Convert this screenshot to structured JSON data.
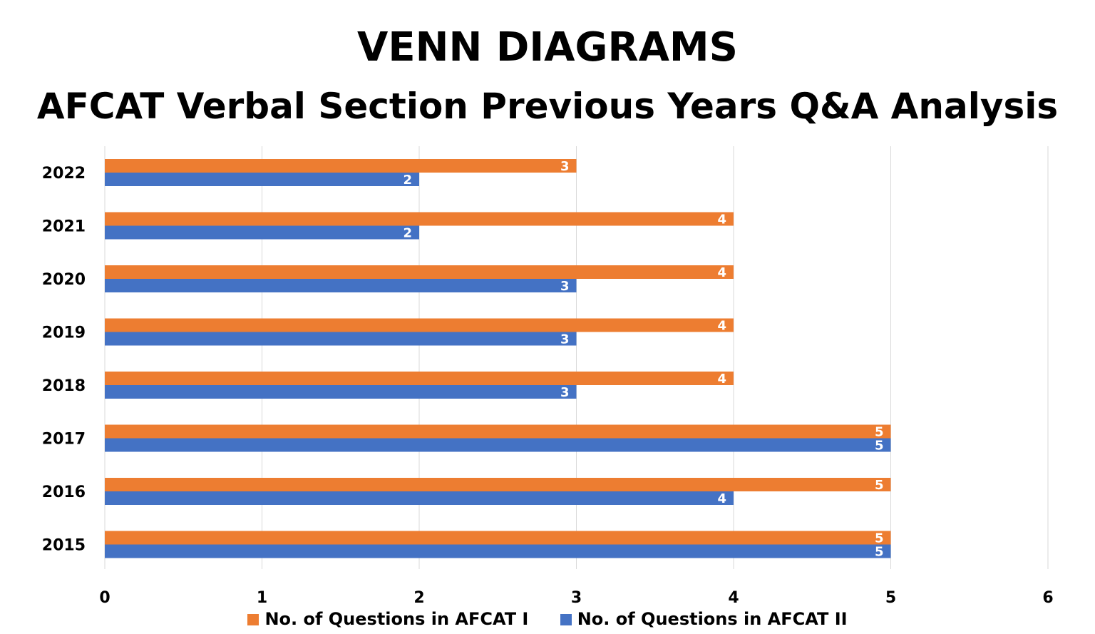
{
  "chart_data": {
    "type": "bar",
    "orientation": "horizontal",
    "title": "VENN DIAGRAMS",
    "subtitle": "AFCAT Verbal Section Previous Years Q&A Analysis",
    "categories": [
      "2022",
      "2021",
      "2020",
      "2019",
      "2018",
      "2017",
      "2016",
      "2015"
    ],
    "series": [
      {
        "name": "No. of Questions in AFCAT I",
        "color": "#ED7D31",
        "values": [
          3,
          4,
          4,
          4,
          4,
          5,
          5,
          5
        ]
      },
      {
        "name": "No. of Questions in AFCAT II",
        "color": "#4472C4",
        "values": [
          2,
          2,
          3,
          3,
          3,
          5,
          4,
          5
        ]
      }
    ],
    "xlim": [
      0,
      6
    ],
    "xticks": [
      "0",
      "1",
      "2",
      "3",
      "4",
      "5",
      "6"
    ],
    "grid": true,
    "legend_position": "bottom",
    "data_labels": true
  }
}
